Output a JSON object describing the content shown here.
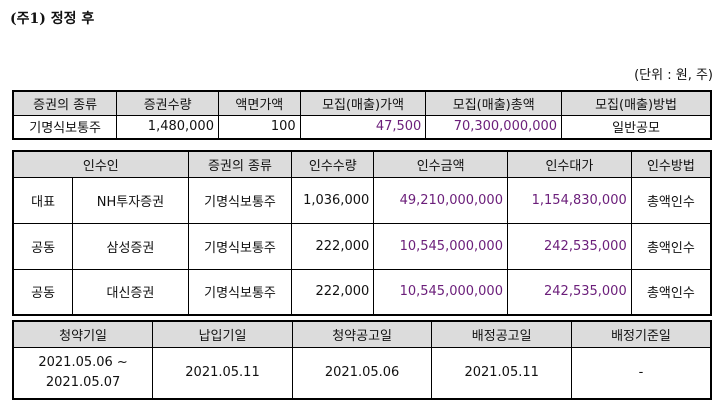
{
  "title": "(주1) 정정 후",
  "unit": "(단위 : 원, 주)",
  "table1": {
    "headers": [
      "증권의 종류",
      "증권수량",
      "액면가액",
      "모집(매출)가액",
      "모집(매출)총액",
      "모집(매출)방법"
    ],
    "row": [
      "기명식보통주",
      "1,480,000",
      "100",
      "47,500",
      "70,300,000,000",
      "일반공모"
    ]
  },
  "table2": {
    "headers": [
      "인수인",
      "증권의 종류",
      "인수수량",
      "인수금액",
      "인수대가",
      "인수방법"
    ],
    "rows": [
      [
        "대표",
        "NH투자증권",
        "기명식보통주",
        "1,036,000",
        "49,210,000,000",
        "1,154,830,000",
        "총액인수"
      ],
      [
        "공동",
        "삼성증권",
        "기명식보통주",
        "222,000",
        "10,545,000,000",
        "242,535,000",
        "총액인수"
      ],
      [
        "공동",
        "대신증권",
        "기명식보통주",
        "222,000",
        "10,545,000,000",
        "242,535,000",
        "총액인수"
      ]
    ]
  },
  "table3": {
    "headers": [
      "청약기일",
      "납입기일",
      "청약공고일",
      "배정공고일",
      "배정기준일"
    ],
    "row": {
      "subscription_line1": "2021.05.06 ~",
      "subscription_line2": "2021.05.07",
      "payment": "2021.05.11",
      "subscription_notice": "2021.05.06",
      "allotment_notice": "2021.05.11",
      "allotment_base": "-"
    }
  },
  "colors": {
    "header_bg": "#dcdcdc",
    "highlight_text": "#6b1e7a"
  }
}
